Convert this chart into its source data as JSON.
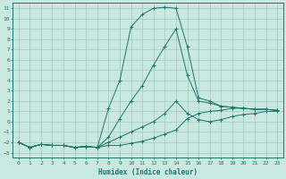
{
  "title": "",
  "xlabel": "Humidex (Indice chaleur)",
  "background_color": "#c8e8e0",
  "grid_color": "#a0c8c0",
  "line_color": "#1a7868",
  "xlim": [
    -0.5,
    23.5
  ],
  "ylim": [
    -3.5,
    11.5
  ],
  "xticks": [
    0,
    1,
    2,
    3,
    4,
    5,
    6,
    7,
    8,
    9,
    10,
    11,
    12,
    13,
    14,
    15,
    16,
    17,
    18,
    19,
    20,
    21,
    22,
    23
  ],
  "yticks": [
    -3,
    -2,
    -1,
    0,
    1,
    2,
    3,
    4,
    5,
    6,
    7,
    8,
    9,
    10,
    11
  ],
  "line1_x": [
    0,
    1,
    2,
    3,
    4,
    5,
    6,
    7,
    8,
    9,
    10,
    11,
    12,
    13,
    14,
    15,
    16,
    17,
    18,
    19,
    20,
    21,
    22,
    23
  ],
  "line1_y": [
    -2,
    -2.5,
    -2.2,
    -2.3,
    -2.3,
    -2.5,
    -2.4,
    -2.5,
    -2.3,
    -2.3,
    -2.1,
    -1.9,
    -1.6,
    -1.2,
    -0.8,
    0.3,
    0.8,
    1.0,
    1.1,
    1.3,
    1.3,
    1.2,
    1.2,
    1.1
  ],
  "line2_x": [
    0,
    1,
    2,
    3,
    4,
    5,
    6,
    7,
    8,
    9,
    10,
    11,
    12,
    13,
    14,
    15,
    16,
    17,
    18,
    19,
    20,
    21,
    22,
    23
  ],
  "line2_y": [
    -2,
    -2.5,
    -2.2,
    -2.3,
    -2.3,
    -2.5,
    -2.4,
    -2.5,
    -2.0,
    -1.5,
    -1.0,
    -0.5,
    0.0,
    0.8,
    2.0,
    0.8,
    0.2,
    0.0,
    0.2,
    0.5,
    0.7,
    0.8,
    1.0,
    1.0
  ],
  "line3_x": [
    0,
    1,
    2,
    3,
    4,
    5,
    6,
    7,
    8,
    9,
    10,
    11,
    12,
    13,
    14,
    15,
    16,
    17,
    18,
    19,
    20,
    21,
    22,
    23
  ],
  "line3_y": [
    -2,
    -2.5,
    -2.2,
    -2.3,
    -2.3,
    -2.5,
    -2.4,
    -2.5,
    -1.5,
    0.3,
    2.0,
    3.5,
    5.5,
    7.3,
    9.0,
    4.5,
    2.0,
    1.8,
    1.5,
    1.4,
    1.3,
    1.2,
    1.2,
    1.1
  ],
  "line4_x": [
    0,
    1,
    2,
    3,
    4,
    5,
    6,
    7,
    8,
    9,
    10,
    11,
    12,
    13,
    14,
    15,
    16,
    17,
    18,
    19,
    20,
    21,
    22,
    23
  ],
  "line4_y": [
    -2,
    -2.5,
    -2.2,
    -2.3,
    -2.3,
    -2.5,
    -2.4,
    -2.5,
    1.3,
    4.0,
    9.2,
    10.4,
    11.0,
    11.1,
    11.0,
    7.3,
    2.3,
    2.0,
    1.5,
    1.4,
    1.3,
    1.2,
    1.2,
    1.1
  ]
}
